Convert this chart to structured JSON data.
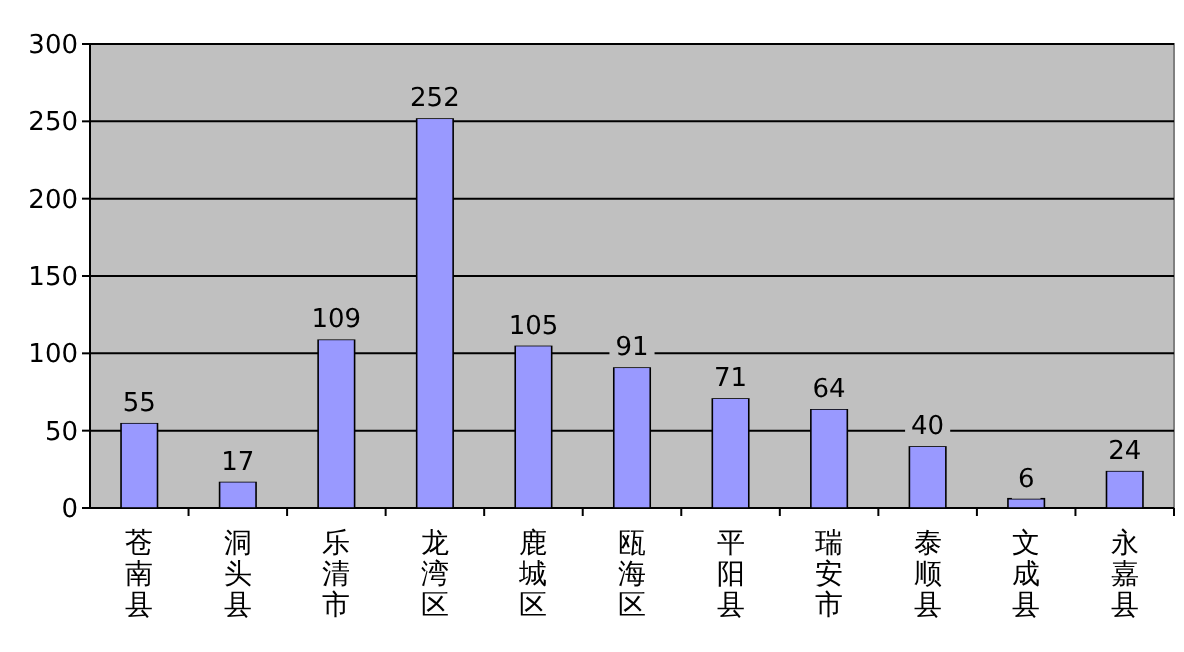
{
  "chart_data": {
    "type": "bar",
    "categories": [
      "苍南县",
      "洞头县",
      "乐清市",
      "龙湾区",
      "鹿城区",
      "瓯海区",
      "平阳县",
      "瑞安市",
      "泰顺县",
      "文成县",
      "永嘉县"
    ],
    "values": [
      55,
      17,
      109,
      252,
      105,
      91,
      71,
      64,
      40,
      6,
      24
    ],
    "color": "#9999ff",
    "ylim": [
      0,
      300
    ],
    "yticks": [
      0,
      50,
      100,
      150,
      200,
      250,
      300
    ],
    "grid": "y",
    "data_labels": true
  }
}
